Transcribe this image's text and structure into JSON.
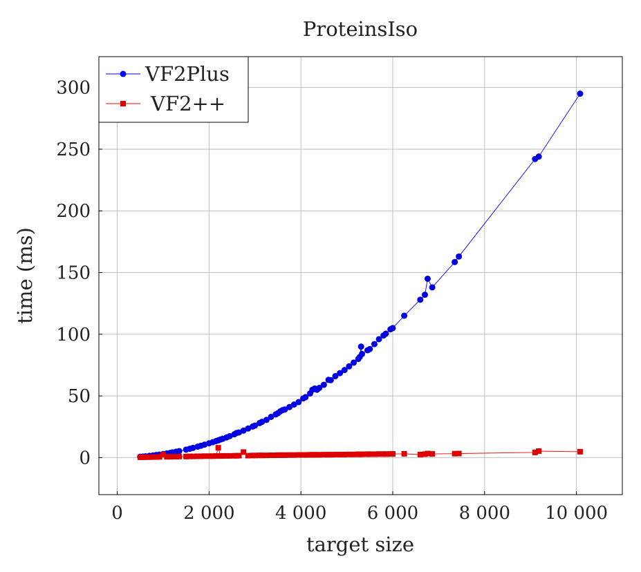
{
  "chart_data": {
    "type": "line",
    "title": "ProteinsIso",
    "xlabel": "target size",
    "ylabel": "time (ms)",
    "xlim": [
      -400,
      11000
    ],
    "ylim": [
      -30,
      325
    ],
    "xticks": [
      0,
      2000,
      4000,
      6000,
      8000,
      10000
    ],
    "xtick_labels": [
      "0",
      "2 000",
      "4 000",
      "6 000",
      "8 000",
      "10 000"
    ],
    "yticks": [
      0,
      50,
      100,
      150,
      200,
      250,
      300
    ],
    "ytick_labels": [
      "0",
      "50",
      "100",
      "150",
      "200",
      "250",
      "300"
    ],
    "grid": true,
    "legend": "top-left",
    "x": [
      500,
      560,
      620,
      700,
      780,
      850,
      920,
      1000,
      1080,
      1150,
      1200,
      1280,
      1350,
      1500,
      1580,
      1650,
      1750,
      1820,
      1900,
      2000,
      2080,
      2150,
      2200,
      2250,
      2300,
      2380,
      2450,
      2550,
      2600,
      2650,
      2750,
      2850,
      2950,
      3000,
      3100,
      3150,
      3250,
      3350,
      3450,
      3500,
      3550,
      3600,
      3650,
      3750,
      3850,
      3950,
      4050,
      4100,
      4200,
      4250,
      4300,
      4350,
      4400,
      4500,
      4600,
      4650,
      4750,
      4850,
      4950,
      5050,
      5150,
      5250,
      5280,
      5310,
      5330,
      5450,
      5500,
      5600,
      5700,
      5800,
      5850,
      5950,
      6000,
      6250,
      6600,
      6700,
      6760,
      6860,
      7350,
      7440,
      9100,
      9180,
      10080
    ],
    "series": [
      {
        "name": "VF2Plus",
        "color": "#0000ff",
        "marker": "circle",
        "values": [
          0.7,
          0.9,
          1.1,
          1.4,
          1.8,
          2.1,
          2.5,
          2.9,
          3.4,
          3.8,
          4.2,
          4.8,
          5.3,
          6.5,
          7.2,
          7.9,
          8.9,
          9.6,
          10.5,
          11.6,
          12.5,
          13.4,
          14,
          14.7,
          15.3,
          16.4,
          17.4,
          18.9,
          20,
          20.4,
          21.9,
          23.6,
          25.2,
          26,
          28,
          29,
          30.6,
          33,
          35,
          36,
          37.5,
          38.5,
          39,
          41,
          43,
          45,
          48,
          49,
          52,
          55,
          56,
          55,
          56.5,
          59,
          63,
          62.8,
          66,
          68.5,
          71,
          74,
          77,
          80,
          81.5,
          90,
          84,
          87,
          88,
          92,
          96,
          99,
          100.5,
          104,
          105,
          115,
          128,
          132,
          145,
          138,
          158.5,
          163,
          242,
          244,
          295
        ]
      },
      {
        "name": "VF2++",
        "color": "#ff0000",
        "marker": "square",
        "values": [
          0.3,
          0.3,
          0.4,
          0.4,
          0.5,
          0.5,
          0.6,
          2.5,
          0.7,
          0.7,
          0.8,
          0.8,
          0.9,
          0.9,
          1.0,
          1.0,
          1.1,
          1.1,
          1.2,
          1.2,
          1.2,
          1.3,
          8,
          1.3,
          1.4,
          1.4,
          1.4,
          1.5,
          1.5,
          1.6,
          4.5,
          1.6,
          1.7,
          1.7,
          1.8,
          1.8,
          1.8,
          1.9,
          1.9,
          2.0,
          2.0,
          2.0,
          2.0,
          2.1,
          2.1,
          2.2,
          2.2,
          2.2,
          2.3,
          2.3,
          2.3,
          2.3,
          2.3,
          2.4,
          2.4,
          2.4,
          2.5,
          2.5,
          2.5,
          2.6,
          2.6,
          2.7,
          2.7,
          2.7,
          2.7,
          2.8,
          2.8,
          2.8,
          2.9,
          2.9,
          2.9,
          3.0,
          3.0,
          3.1,
          2.5,
          2.8,
          3.3,
          3.0,
          3.2,
          3.3,
          4.2,
          5.3,
          4.8
        ]
      }
    ]
  }
}
